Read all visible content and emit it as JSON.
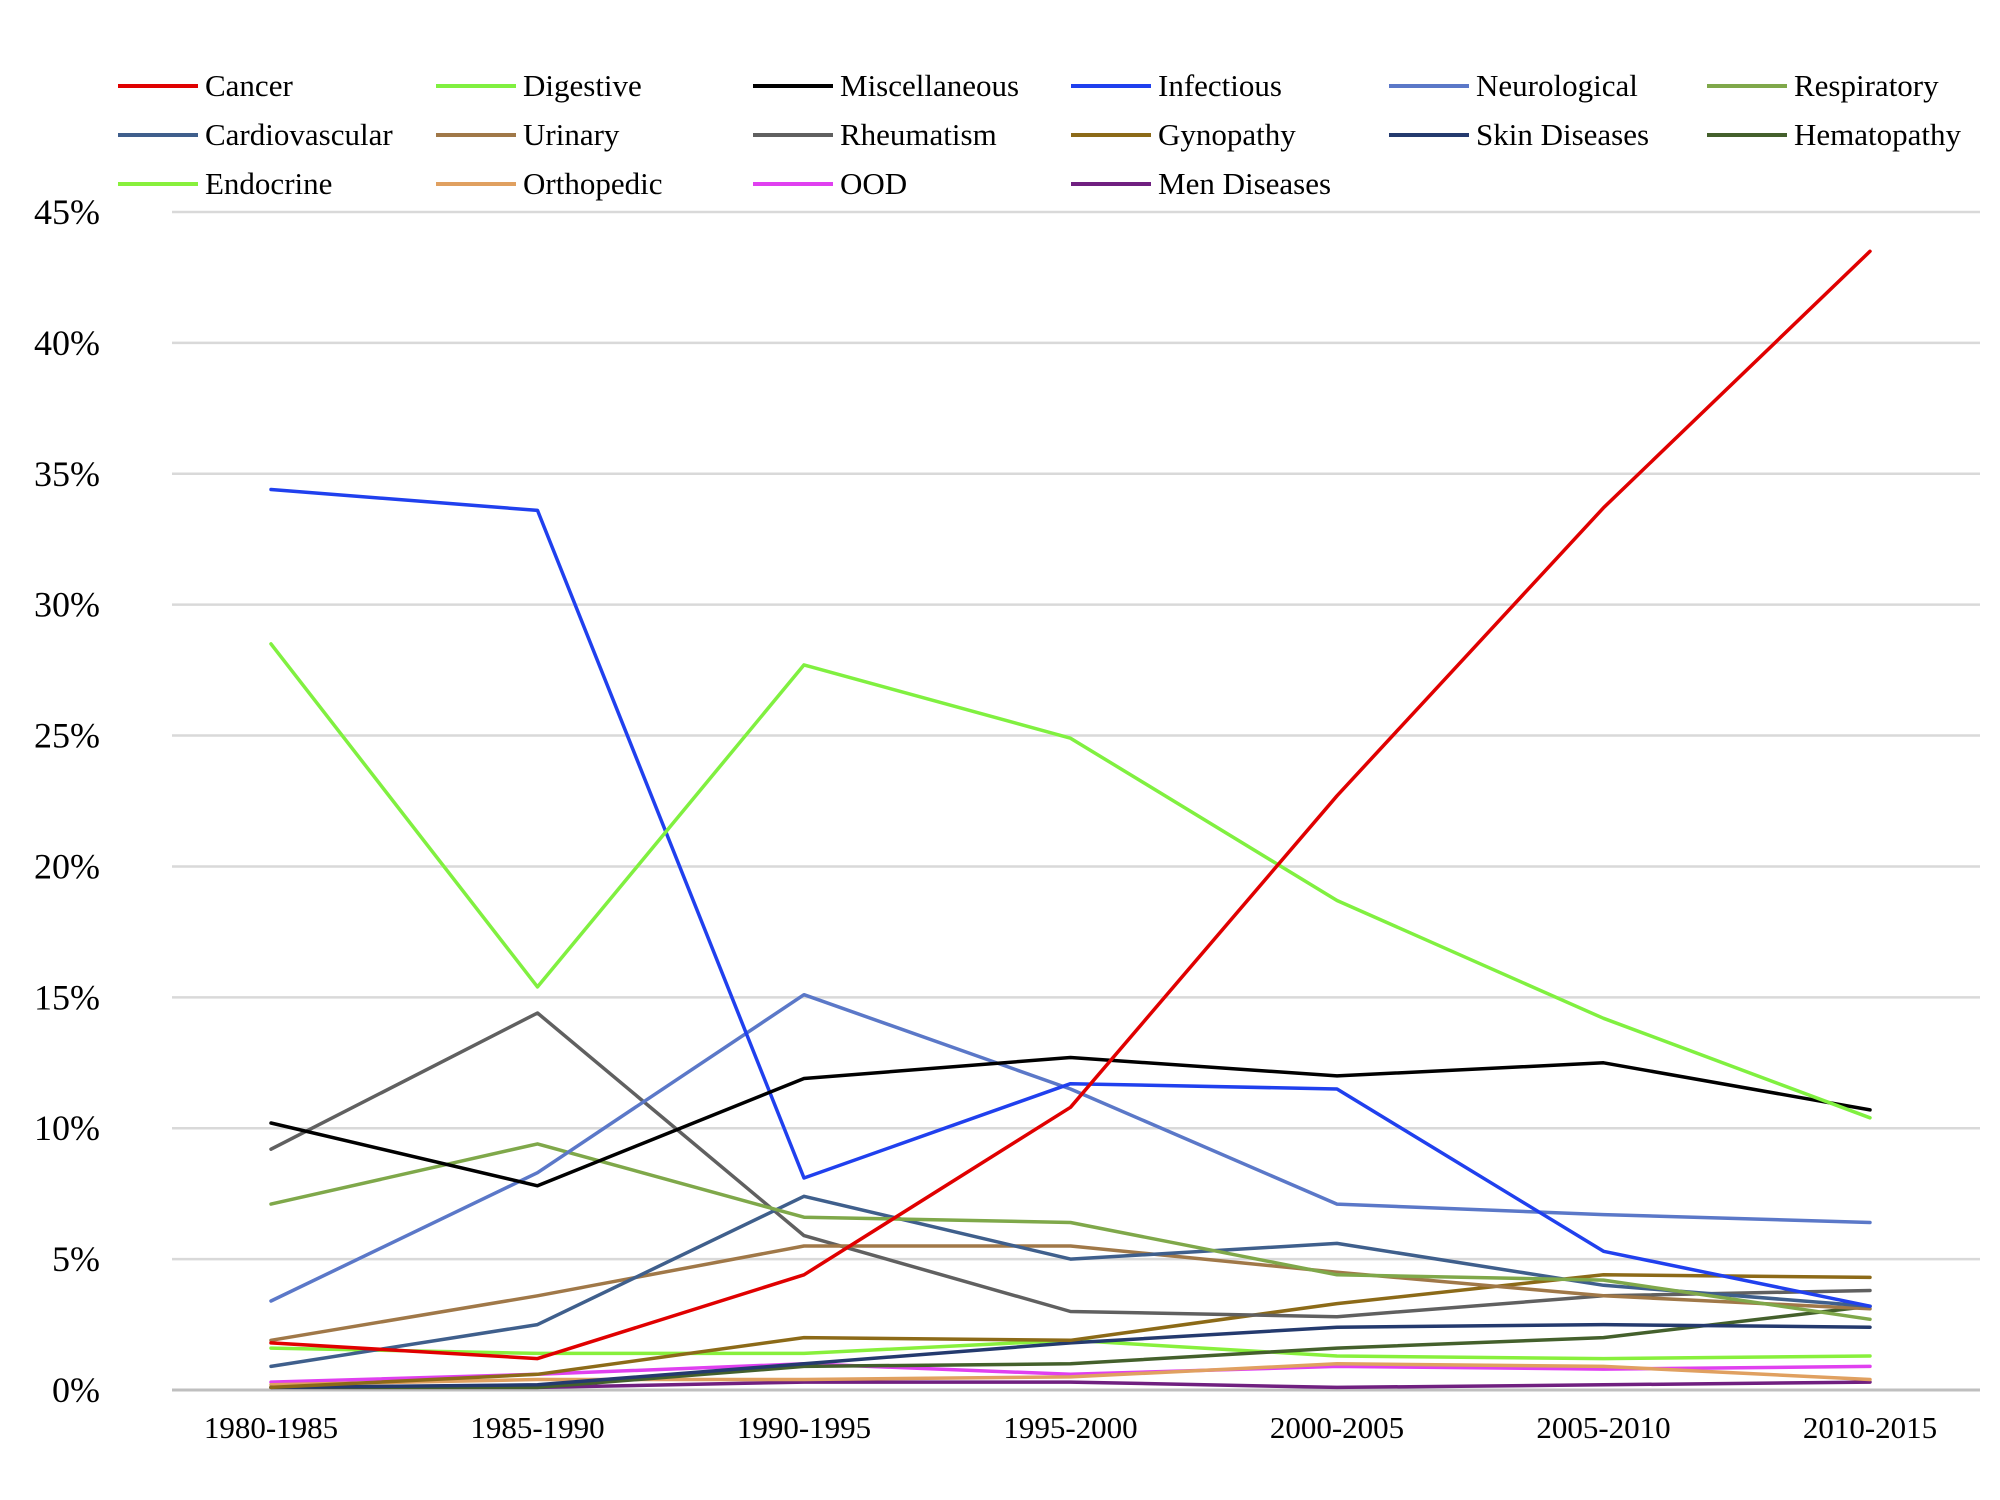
{
  "chart_data": {
    "type": "line",
    "title": "",
    "xlabel": "",
    "ylabel": "",
    "categories": [
      "1980-1985",
      "1985-1990",
      "1990-1995",
      "1995-2000",
      "2000-2005",
      "2005-2010",
      "2010-2015"
    ],
    "ylim": [
      0,
      45
    ],
    "yticks": [
      {
        "value": 0,
        "label": "0%"
      },
      {
        "value": 5,
        "label": "5%"
      },
      {
        "value": 10,
        "label": "10%"
      },
      {
        "value": 15,
        "label": "15%"
      },
      {
        "value": 20,
        "label": "20%"
      },
      {
        "value": 25,
        "label": "25%"
      },
      {
        "value": 30,
        "label": "30%"
      },
      {
        "value": 35,
        "label": "35%"
      },
      {
        "value": 40,
        "label": "40%"
      },
      {
        "value": 45,
        "label": "45%"
      }
    ],
    "grid": true,
    "legend_position": "top",
    "series": [
      {
        "name": "Cancer",
        "color": "#e00000",
        "values": [
          1.8,
          1.2,
          4.4,
          10.8,
          22.7,
          33.7,
          43.5
        ]
      },
      {
        "name": "Digestive",
        "color": "#80f040",
        "values": [
          28.5,
          15.4,
          27.7,
          24.9,
          18.7,
          14.2,
          10.4
        ]
      },
      {
        "name": "Miscellaneous",
        "color": "#000000",
        "values": [
          10.2,
          7.8,
          11.9,
          12.7,
          12.0,
          12.5,
          10.7
        ]
      },
      {
        "name": "Infectious",
        "color": "#2040ee",
        "values": [
          34.4,
          33.6,
          8.1,
          11.7,
          11.5,
          5.3,
          3.2
        ]
      },
      {
        "name": "Neurological",
        "color": "#5b78c8",
        "values": [
          3.4,
          8.3,
          15.1,
          11.5,
          7.1,
          6.7,
          6.4
        ]
      },
      {
        "name": "Respiratory",
        "color": "#7fa84a",
        "values": [
          7.1,
          9.4,
          6.6,
          6.4,
          4.4,
          4.2,
          2.7
        ]
      },
      {
        "name": "Cardiovascular",
        "color": "#3f5f8c",
        "values": [
          0.9,
          2.5,
          7.4,
          5.0,
          5.6,
          4.0,
          3.2
        ]
      },
      {
        "name": "Urinary",
        "color": "#a07848",
        "values": [
          1.9,
          3.6,
          5.5,
          5.5,
          4.5,
          3.6,
          3.1
        ]
      },
      {
        "name": "Rheumatism",
        "color": "#606060",
        "values": [
          9.2,
          14.4,
          5.9,
          3.0,
          2.8,
          3.6,
          3.8
        ]
      },
      {
        "name": "Gynopathy",
        "color": "#8c6a18",
        "values": [
          0.1,
          0.6,
          2.0,
          1.9,
          3.3,
          4.4,
          4.3
        ]
      },
      {
        "name": "Skin Diseases",
        "color": "#243a6e",
        "values": [
          0.1,
          0.2,
          1.0,
          1.8,
          2.4,
          2.5,
          2.4
        ]
      },
      {
        "name": "Hematopathy",
        "color": "#44602c",
        "values": [
          0.1,
          0.1,
          0.9,
          1.0,
          1.6,
          2.0,
          3.2
        ]
      },
      {
        "name": "Endocrine",
        "color": "#88f03c",
        "values": [
          1.6,
          1.4,
          1.4,
          1.9,
          1.3,
          1.2,
          1.3
        ]
      },
      {
        "name": "Orthopedic",
        "color": "#e0a060",
        "values": [
          0.2,
          0.4,
          0.4,
          0.5,
          1.0,
          0.9,
          0.4
        ]
      },
      {
        "name": "OOD",
        "color": "#e040f0",
        "values": [
          0.3,
          0.6,
          1.0,
          0.6,
          0.9,
          0.8,
          0.9
        ]
      },
      {
        "name": "Men Diseases",
        "color": "#702080",
        "values": [
          0.1,
          0.1,
          0.3,
          0.3,
          0.1,
          0.2,
          0.3
        ]
      }
    ]
  }
}
